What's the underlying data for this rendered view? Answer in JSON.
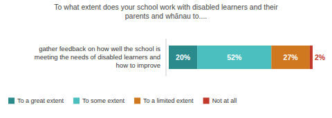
{
  "chart_data": {
    "type": "bar",
    "orientation": "horizontal",
    "stacked": true,
    "title": "To what extent does your school work with disabled learners and their\nparents and whānau to....",
    "categories": [
      "gather feedback on how well the school is\nmeeting the needs of disabled learners and\nhow to improve"
    ],
    "series": [
      {
        "name": "To a great extent",
        "color": "#2a8a8c",
        "values": [
          20
        ],
        "value_labels": [
          "20%"
        ]
      },
      {
        "name": "To some extent",
        "color": "#4bbfbf",
        "values": [
          52
        ],
        "value_labels": [
          "52%"
        ]
      },
      {
        "name": "To a limited extent",
        "color": "#d07820",
        "values": [
          27
        ],
        "value_labels": [
          "27%"
        ]
      },
      {
        "name": "Not at all",
        "color": "#c0392b",
        "values": [
          2
        ],
        "value_labels": [
          "2%"
        ]
      }
    ],
    "xlim": [
      0,
      101
    ],
    "data_labels": true,
    "tick_labels": false,
    "legend": "lower left"
  }
}
